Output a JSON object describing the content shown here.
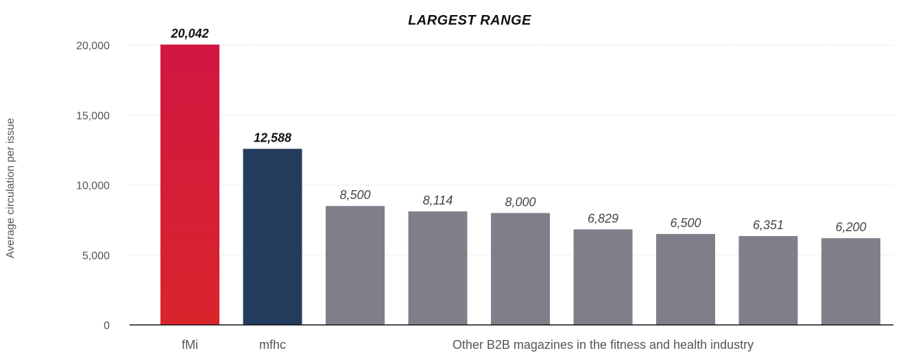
{
  "chart_data": {
    "type": "bar",
    "title": "LARGEST RANGE",
    "ylabel": "Average circulation per issue",
    "xlabel": "",
    "ylim": [
      0,
      20000
    ],
    "yticks": [
      0,
      5000,
      10000,
      15000,
      20000
    ],
    "ytick_labels": [
      "0",
      "5,000",
      "10,000",
      "15,000",
      "20,000"
    ],
    "grid": "horizontal dotted",
    "values": [
      20042,
      12588,
      8500,
      8114,
      8000,
      6829,
      6500,
      6351,
      6200
    ],
    "value_labels": [
      "20,042",
      "12,588",
      "8,500",
      "8,114",
      "8,000",
      "6,829",
      "6,500",
      "6,351",
      "6,200"
    ],
    "value_label_emphasis": [
      true,
      true,
      false,
      false,
      false,
      false,
      false,
      false,
      false
    ],
    "bar_colors": [
      "#d11742",
      "#243c5e",
      "#807f89",
      "#807f89",
      "#807f89",
      "#807f89",
      "#807f89",
      "#807f89",
      "#807f89"
    ],
    "category_labels": [
      {
        "text": "fMi",
        "bars": [
          0,
          0
        ]
      },
      {
        "text": "mfhc",
        "bars": [
          1,
          1
        ]
      },
      {
        "text": "Other B2B magazines in the fitness and health industry",
        "bars": [
          2,
          8
        ]
      }
    ],
    "colors": {
      "fMi_top": "#d11742",
      "fMi_bottom": "#d8252b"
    }
  }
}
